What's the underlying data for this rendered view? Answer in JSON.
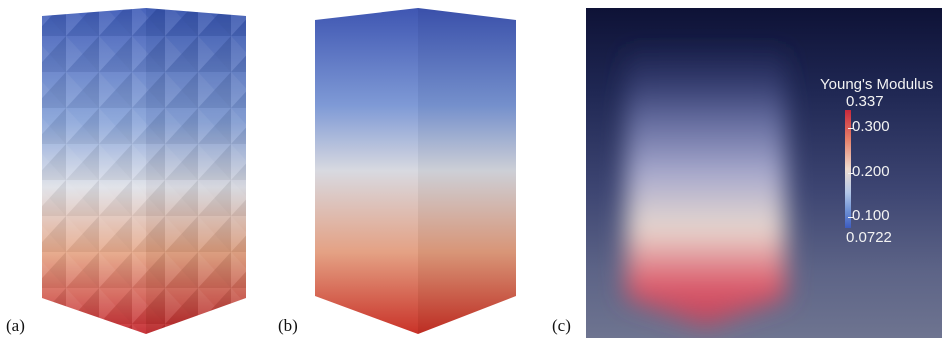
{
  "captions": {
    "a": "(a)",
    "b": "(b)",
    "c": "(c)"
  },
  "colorbar": {
    "title": "Young's Modulus",
    "max": "0.337",
    "ticks": [
      "0.300",
      "0.200",
      "0.100"
    ],
    "min": "0.0722",
    "colors": {
      "high": "#c8293b",
      "mid": "#eedcd0",
      "low": "#3c5bc0"
    }
  },
  "colors": {
    "top_blue": "#3e5bb7",
    "bottom_red": "#c52a31",
    "volume_background": "#1f2753"
  }
}
